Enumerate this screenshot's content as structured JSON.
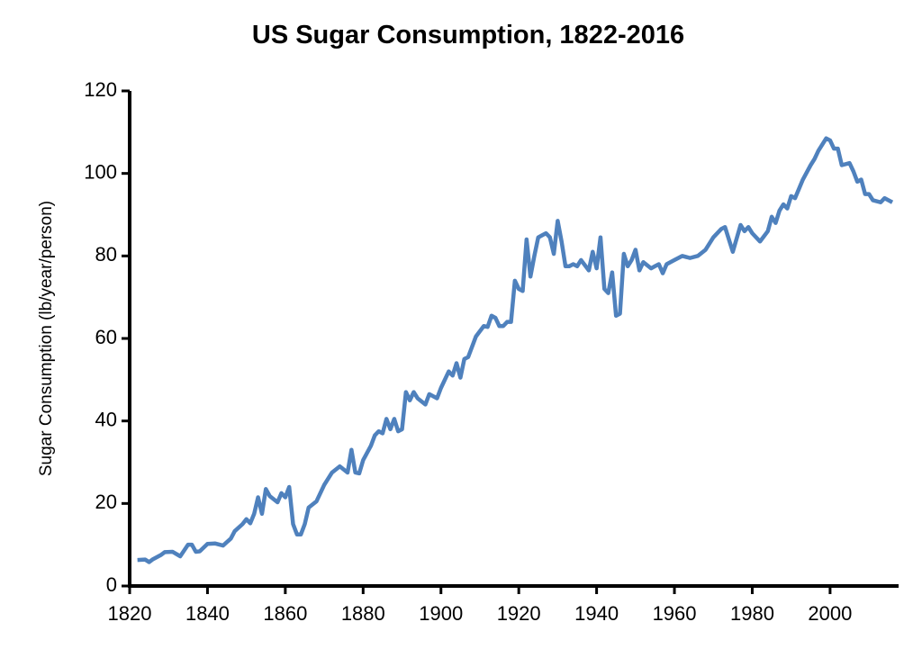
{
  "chart_data": {
    "type": "line",
    "title": "US Sugar Consumption, 1822-2016",
    "y_label": "Sugar Consumption (lb/year/person)",
    "x": [
      1822,
      1824,
      1825,
      1826,
      1828,
      1829,
      1831,
      1833,
      1835,
      1836,
      1837,
      1838,
      1840,
      1842,
      1844,
      1846,
      1847,
      1849,
      1850,
      1851,
      1852,
      1853,
      1854,
      1855,
      1856,
      1858,
      1859,
      1860,
      1861,
      1862,
      1863,
      1864,
      1865,
      1866,
      1868,
      1870,
      1872,
      1874,
      1876,
      1877,
      1878,
      1879,
      1880,
      1882,
      1883,
      1884,
      1885,
      1886,
      1887,
      1888,
      1889,
      1890,
      1891,
      1892,
      1893,
      1894,
      1896,
      1897,
      1899,
      1900,
      1902,
      1903,
      1904,
      1905,
      1906,
      1907,
      1909,
      1911,
      1912,
      1913,
      1914,
      1915,
      1916,
      1917,
      1918,
      1919,
      1920,
      1921,
      1922,
      1923,
      1924,
      1925,
      1926,
      1927,
      1928,
      1929,
      1930,
      1931,
      1932,
      1933,
      1934,
      1935,
      1936,
      1938,
      1939,
      1940,
      1941,
      1942,
      1943,
      1944,
      1945,
      1946,
      1947,
      1948,
      1949,
      1950,
      1951,
      1952,
      1954,
      1955,
      1956,
      1957,
      1958,
      1960,
      1962,
      1964,
      1966,
      1968,
      1970,
      1972,
      1973,
      1975,
      1977,
      1978,
      1979,
      1980,
      1982,
      1984,
      1985,
      1986,
      1987,
      1988,
      1989,
      1990,
      1991,
      1993,
      1995,
      1996,
      1997,
      1999,
      2000,
      2001,
      2002,
      2003,
      2005,
      2006,
      2007,
      2008,
      2009,
      2010,
      2011,
      2013,
      2014,
      2016
    ],
    "values": [
      6.3,
      6.4,
      5.8,
      6.5,
      7.5,
      8.2,
      8.3,
      7.2,
      10.0,
      10.0,
      8.3,
      8.4,
      10.2,
      10.3,
      9.8,
      11.5,
      13.3,
      15.0,
      16.2,
      15.2,
      17.5,
      21.5,
      17.5,
      23.5,
      21.8,
      20.3,
      22.5,
      21.5,
      24.0,
      15.0,
      12.5,
      12.5,
      15.0,
      19.0,
      20.5,
      24.5,
      27.5,
      29.0,
      27.5,
      33.0,
      27.5,
      27.3,
      30.5,
      34.0,
      36.5,
      37.5,
      37.0,
      40.5,
      38.0,
      40.5,
      37.5,
      38.0,
      47.0,
      45.0,
      47.0,
      45.5,
      44.0,
      46.5,
      45.5,
      48.0,
      52.0,
      51.0,
      54.0,
      50.5,
      55.0,
      55.5,
      60.5,
      63.0,
      62.8,
      65.5,
      65.0,
      63.0,
      63.0,
      64.0,
      64.0,
      74.0,
      72.0,
      71.5,
      84.0,
      75.0,
      80.0,
      84.5,
      85.0,
      85.5,
      84.5,
      80.5,
      88.5,
      83.5,
      77.5,
      77.5,
      78.0,
      77.5,
      79.0,
      76.5,
      81.0,
      77.0,
      84.5,
      72.0,
      71.0,
      76.0,
      65.5,
      66.0,
      80.5,
      77.5,
      79.0,
      81.5,
      76.5,
      78.5,
      77.0,
      77.5,
      78.0,
      75.8,
      78.0,
      79.0,
      80.0,
      79.5,
      80.0,
      81.5,
      84.5,
      86.5,
      87.0,
      81.0,
      87.5,
      86.0,
      87.0,
      85.5,
      83.5,
      86.0,
      89.5,
      88.0,
      91.0,
      92.5,
      91.5,
      94.5,
      94.0,
      98.5,
      102.0,
      103.5,
      105.5,
      108.5,
      108.0,
      106.0,
      106.0,
      102.0,
      102.5,
      100.5,
      98.0,
      98.5,
      95.0,
      95.0,
      93.5,
      93.0,
      94.0,
      93.0
    ],
    "color": "#4f81bd",
    "xlim": [
      1820,
      2018
    ],
    "ylim": [
      0,
      120
    ],
    "xticks": [
      1820,
      1840,
      1860,
      1880,
      1900,
      1920,
      1940,
      1960,
      1980,
      2000
    ],
    "yticks": [
      0,
      20,
      40,
      60,
      80,
      100,
      120
    ],
    "grid": false
  }
}
